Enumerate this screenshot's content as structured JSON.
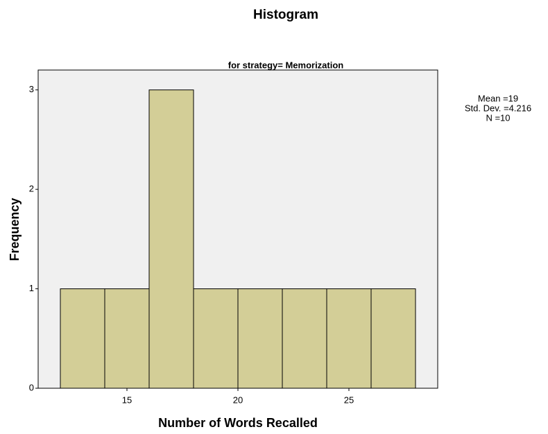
{
  "chart_data": {
    "type": "histogram",
    "title": "Histogram",
    "subtitle": "for strategy= Memorization",
    "xlabel": "Number of Words Recalled",
    "ylabel": "Frequency",
    "bins": [
      12,
      14,
      16,
      18,
      20,
      22,
      24,
      26,
      28
    ],
    "values": [
      1,
      1,
      3,
      1,
      1,
      1,
      1,
      1
    ],
    "color": "#d3ce97",
    "background": "#f0f0f0",
    "xlim": [
      11,
      29
    ],
    "xticks": [
      15,
      20,
      25
    ],
    "ylim": [
      0,
      3.2
    ],
    "yticks": [
      0,
      1,
      2,
      3
    ],
    "annotations": [
      "Mean =19",
      "Std. Dev. =4.216",
      "N =10"
    ]
  }
}
